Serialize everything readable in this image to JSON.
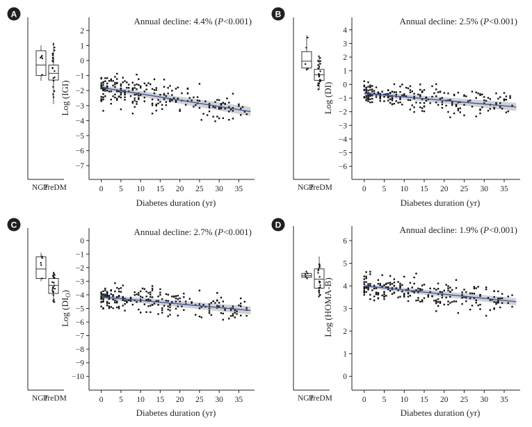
{
  "colors": {
    "points": "#111111",
    "fit": "#3a56a8",
    "band": "#c9c9c9",
    "axis": "#231f20",
    "badge": "#231f20"
  },
  "chart_data": [
    {
      "panel": "A",
      "type": "scatter",
      "ylabel": "Log (IGI)",
      "xlabel": "Diabetes duration (yr)",
      "annotation": "Annual decline: 4.4% (P<0.001)",
      "ylim": [
        -7.5,
        2.5
      ],
      "yticks": [
        2,
        1,
        0,
        -1,
        -2,
        -3,
        -4,
        -5,
        -6,
        -7
      ],
      "xlim": [
        -1,
        39
      ],
      "xticks": [
        0,
        5,
        10,
        15,
        20,
        25,
        30,
        35
      ],
      "fit": {
        "x": [
          0,
          38
        ],
        "y": [
          -1.8,
          -3.4
        ],
        "band_halfwidth": [
          0.15,
          0.3
        ]
      },
      "point_cloud": {
        "center": -2.0,
        "spread": 0.95,
        "n": 240
      },
      "box_categories": [
        "NGT",
        "PreDM"
      ],
      "boxes": [
        {
          "name": "NGT",
          "min": -1.35,
          "q1": -1.0,
          "median": -0.3,
          "q3": 0.65,
          "max": 1.0
        },
        {
          "name": "PreDM",
          "min": -2.9,
          "q1": -1.3,
          "median": -0.85,
          "q3": -0.3,
          "max": 1.2
        }
      ]
    },
    {
      "panel": "B",
      "type": "scatter",
      "ylabel": "Log (DI)",
      "xlabel": "Diabetes duration (yr)",
      "annotation": "Annual decline: 2.5% (P<0.001)",
      "ylim": [
        -6.5,
        4.5
      ],
      "yticks": [
        4,
        3,
        2,
        1,
        0,
        -1,
        -2,
        -3,
        -4,
        -5,
        -6
      ],
      "xlim": [
        -1,
        39
      ],
      "xticks": [
        0,
        5,
        10,
        15,
        20,
        25,
        30,
        35
      ],
      "fit": {
        "x": [
          0,
          38
        ],
        "y": [
          -0.65,
          -1.65
        ],
        "band_halfwidth": [
          0.15,
          0.3
        ]
      },
      "point_cloud": {
        "center": -0.9,
        "spread": 0.85,
        "n": 240
      },
      "box_categories": [
        "NGT",
        "PreDM"
      ],
      "boxes": [
        {
          "name": "NGT",
          "min": 1.0,
          "q1": 1.2,
          "median": 1.7,
          "q3": 2.4,
          "max": 3.6
        },
        {
          "name": "PreDM",
          "min": -0.4,
          "q1": 0.3,
          "median": 0.7,
          "q3": 1.1,
          "max": 2.1
        }
      ]
    },
    {
      "panel": "C",
      "type": "scatter",
      "ylabel": "Log (DI",
      "ylabel_sub": "O",
      "ylabel_end": ")",
      "xlabel": "Diabetes duration (yr)",
      "annotation": "Annual decline: 2.7% (P<0.001)",
      "ylim": [
        -10.5,
        0.5
      ],
      "yticks": [
        0,
        -1,
        -2,
        -3,
        -4,
        -5,
        -6,
        -7,
        -8,
        -9,
        -10
      ],
      "xlim": [
        -1,
        39
      ],
      "xticks": [
        0,
        5,
        10,
        15,
        20,
        25,
        30,
        35
      ],
      "fit": {
        "x": [
          0,
          38
        ],
        "y": [
          -4.15,
          -5.15
        ],
        "band_halfwidth": [
          0.15,
          0.3
        ]
      },
      "point_cloud": {
        "center": -4.4,
        "spread": 0.9,
        "n": 240
      },
      "box_categories": [
        "NGT",
        "PreDM"
      ],
      "boxes": [
        {
          "name": "NGT",
          "min": -3.0,
          "q1": -2.8,
          "median": -2.1,
          "q3": -1.2,
          "max": -0.9
        },
        {
          "name": "PreDM",
          "min": -4.6,
          "q1": -3.9,
          "median": -3.3,
          "q3": -2.8,
          "max": -2.3
        }
      ]
    },
    {
      "panel": "D",
      "type": "scatter",
      "ylabel": "Log (HOMA-B)",
      "xlabel": "Diabetes duration (yr)",
      "annotation": "Annual decline: 1.9% (P<0.001)",
      "ylim": [
        -0.3,
        6.4
      ],
      "yticks": [
        6,
        5,
        4,
        3,
        2,
        1,
        0
      ],
      "xlim": [
        -1,
        39
      ],
      "xticks": [
        0,
        5,
        10,
        15,
        20,
        25,
        30,
        35
      ],
      "fit": {
        "x": [
          0,
          38
        ],
        "y": [
          4.0,
          3.3
        ],
        "band_halfwidth": [
          0.08,
          0.16
        ]
      },
      "point_cloud": {
        "center": 3.8,
        "spread": 0.55,
        "n": 240
      },
      "box_categories": [
        "NGT",
        "PreDM"
      ],
      "boxes": [
        {
          "name": "NGT",
          "min": 4.3,
          "q1": 4.38,
          "median": 4.45,
          "q3": 4.55,
          "max": 4.65
        },
        {
          "name": "PreDM",
          "min": 3.5,
          "q1": 3.9,
          "median": 4.3,
          "q3": 4.75,
          "max": 5.3
        }
      ]
    }
  ]
}
